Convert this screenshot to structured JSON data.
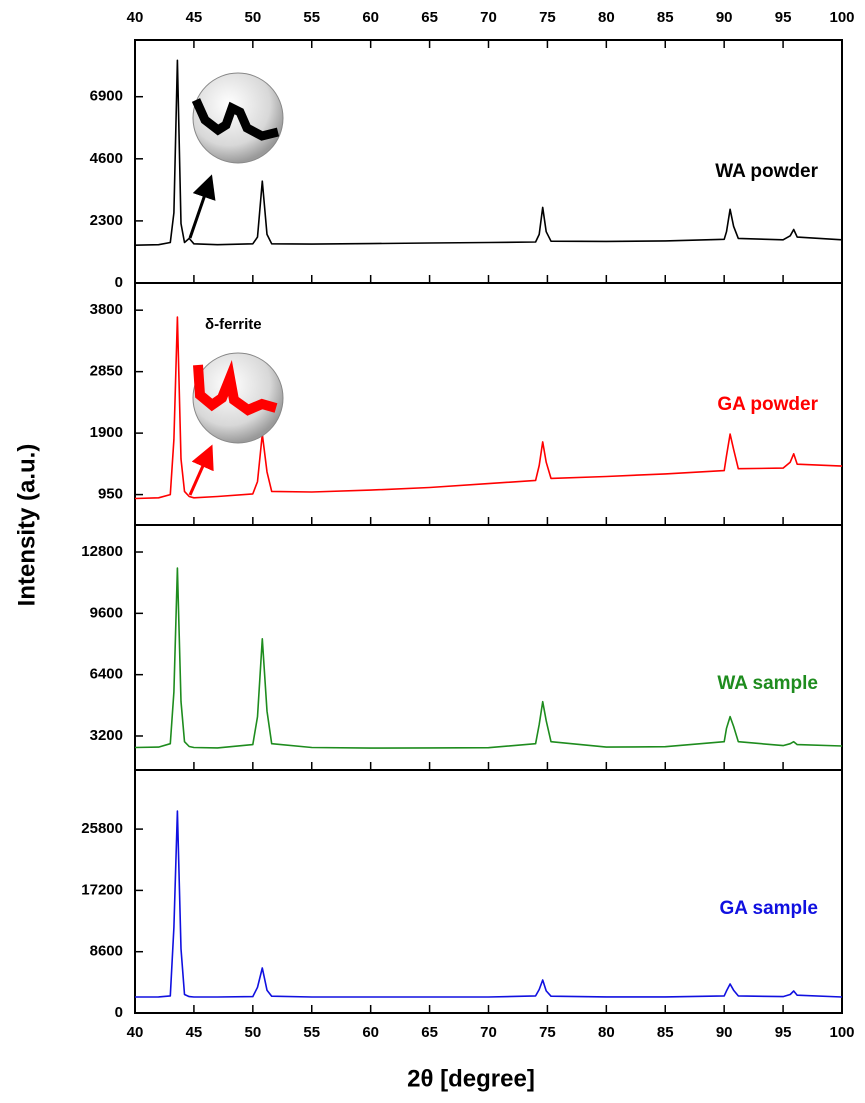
{
  "axes": {
    "xlabel": "2θ [degree]",
    "ylabel": "Intensity (a.u.)"
  },
  "chart_data": [
    {
      "type": "line",
      "xlim": [
        40,
        100
      ],
      "xticks": [
        40,
        45,
        50,
        55,
        60,
        65,
        70,
        75,
        80,
        85,
        90,
        95,
        100
      ],
      "ylim": [
        0,
        9000
      ],
      "yticks": [
        0,
        2300,
        4600,
        6900
      ],
      "x": [
        40,
        42,
        43,
        43.3,
        43.6,
        43.9,
        44.2,
        44.6,
        45,
        47,
        50,
        50.4,
        50.8,
        51.2,
        51.6,
        55,
        60,
        65,
        70,
        74,
        74.3,
        74.6,
        74.9,
        75.3,
        80,
        85,
        90,
        90.2,
        90.5,
        90.8,
        91.2,
        95,
        95.6,
        95.9,
        96.2,
        100
      ],
      "series": [
        {
          "name": "WA powder",
          "color": "#000000",
          "values": [
            1400,
            1420,
            1500,
            2600,
            8250,
            2200,
            1500,
            1650,
            1450,
            1420,
            1450,
            1700,
            3770,
            1800,
            1450,
            1440,
            1460,
            1480,
            1500,
            1520,
            1800,
            2800,
            1900,
            1550,
            1540,
            1560,
            1620,
            1900,
            2730,
            2100,
            1650,
            1600,
            1750,
            1980,
            1700,
            1600
          ]
        }
      ]
    },
    {
      "type": "line",
      "xlim": [
        40,
        100
      ],
      "xticks": [
        40,
        45,
        50,
        55,
        60,
        65,
        70,
        75,
        80,
        85,
        90,
        95,
        100
      ],
      "ylim": [
        480,
        4220
      ],
      "yticks": [
        950,
        1900,
        2850,
        3800
      ],
      "annotation": "δ-ferrite",
      "x": [
        40,
        42,
        43,
        43.3,
        43.6,
        43.9,
        44.2,
        44.6,
        45,
        47,
        50,
        50.4,
        50.8,
        51.2,
        51.6,
        55,
        60,
        65,
        70,
        74,
        74.3,
        74.6,
        74.9,
        75.3,
        80,
        85,
        90,
        90.2,
        90.5,
        90.8,
        91.2,
        95,
        95.6,
        95.9,
        96.2,
        100
      ],
      "series": [
        {
          "name": "GA powder",
          "color": "#ff0000",
          "values": [
            890,
            900,
            950,
            1800,
            3695,
            1500,
            1000,
            920,
            900,
            920,
            960,
            1150,
            1885,
            1300,
            1000,
            990,
            1020,
            1060,
            1120,
            1170,
            1400,
            1765,
            1450,
            1200,
            1230,
            1270,
            1320,
            1550,
            1885,
            1650,
            1350,
            1360,
            1450,
            1580,
            1420,
            1390
          ]
        }
      ]
    },
    {
      "type": "line",
      "xlim": [
        40,
        100
      ],
      "xticks": [
        40,
        45,
        50,
        55,
        60,
        65,
        70,
        75,
        80,
        85,
        90,
        95,
        100
      ],
      "ylim": [
        1425,
        14210
      ],
      "yticks": [
        3200,
        6400,
        9600,
        12800
      ],
      "x": [
        40,
        42,
        43,
        43.3,
        43.6,
        43.9,
        44.2,
        44.6,
        45,
        47,
        50,
        50.4,
        50.8,
        51.2,
        51.6,
        55,
        60,
        65,
        70,
        74,
        74.3,
        74.6,
        74.9,
        75.3,
        80,
        85,
        90,
        90.2,
        90.5,
        90.8,
        91.2,
        95,
        95.6,
        95.9,
        96.2,
        100
      ],
      "series": [
        {
          "name": "WA sample",
          "color": "#1e8c1e",
          "values": [
            2600,
            2620,
            2800,
            5500,
            11965,
            5000,
            2900,
            2650,
            2600,
            2580,
            2750,
            4200,
            8270,
            4500,
            2800,
            2600,
            2570,
            2580,
            2590,
            2800,
            3800,
            4990,
            4000,
            2900,
            2620,
            2640,
            2900,
            3600,
            4210,
            3700,
            2900,
            2700,
            2800,
            2900,
            2750,
            2680
          ]
        }
      ]
    },
    {
      "type": "line",
      "xlim": [
        40,
        100
      ],
      "xticks": [
        40,
        45,
        50,
        55,
        60,
        65,
        70,
        75,
        80,
        85,
        90,
        95,
        100
      ],
      "ylim": [
        0,
        34090
      ],
      "yticks": [
        0,
        8600,
        17200,
        25800
      ],
      "x": [
        40,
        42,
        43,
        43.3,
        43.6,
        43.9,
        44.2,
        44.6,
        45,
        47,
        50,
        50.4,
        50.8,
        51.2,
        51.6,
        55,
        60,
        65,
        70,
        74,
        74.3,
        74.6,
        74.9,
        75.3,
        80,
        85,
        90,
        90.2,
        90.5,
        90.8,
        91.2,
        95,
        95.6,
        95.9,
        96.2,
        100
      ],
      "series": [
        {
          "name": "GA sample",
          "color": "#1010e0",
          "values": [
            2250,
            2260,
            2400,
            12000,
            28340,
            9000,
            2600,
            2300,
            2250,
            2250,
            2300,
            3600,
            6310,
            3200,
            2350,
            2250,
            2240,
            2250,
            2250,
            2400,
            3300,
            4630,
            3100,
            2350,
            2260,
            2260,
            2400,
            3100,
            4070,
            3200,
            2400,
            2300,
            2600,
            3090,
            2500,
            2250
          ]
        }
      ]
    }
  ]
}
